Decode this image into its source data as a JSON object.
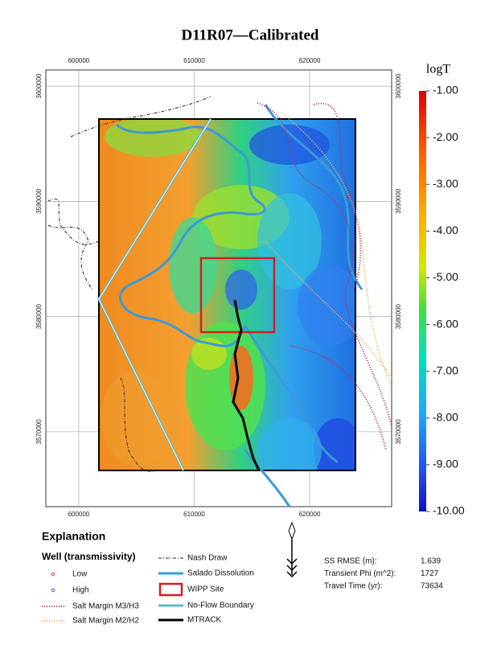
{
  "title": "D11R07—Calibrated",
  "map": {
    "xlim": [
      597150,
      627100
    ],
    "ylim": [
      3563500,
      3601400
    ],
    "xticks": [
      600000,
      610000,
      620000
    ],
    "yticks": [
      3600000,
      3590000,
      3580000,
      3570000
    ]
  },
  "colorbar": {
    "title": "logT",
    "lim": [
      -10,
      -1
    ],
    "ticks": [
      {
        "value": -1,
        "label": "-1.00"
      },
      {
        "value": -2,
        "label": "-2.00"
      },
      {
        "value": -3,
        "label": "-3.00"
      },
      {
        "value": -4,
        "label": "-4.00"
      },
      {
        "value": -5,
        "label": "-5.00"
      },
      {
        "value": -6,
        "label": "-6.00"
      },
      {
        "value": -7,
        "label": "-7.00"
      },
      {
        "value": -8,
        "label": "-8.00"
      },
      {
        "value": -9,
        "label": "-9.00"
      },
      {
        "value": -10,
        "label": "-10.00"
      }
    ]
  },
  "legend": {
    "title": "Explanation",
    "well_heading": "Well (transmissivity)",
    "items": [
      "Low",
      "High",
      "Salt Margin M3/H3",
      "Salt Margin M2/H2",
      "Nash Draw",
      "Salado Dissolution",
      "WIPP Site",
      "No-Flow Boundary",
      "MTRACK"
    ]
  },
  "stats": [
    {
      "label": "SS RMSE (m):",
      "value": 1.639
    },
    {
      "label": "Transient Phi (m^2):",
      "value": 1727
    },
    {
      "label": "Travel Time (yr):",
      "value": 73634
    }
  ]
}
